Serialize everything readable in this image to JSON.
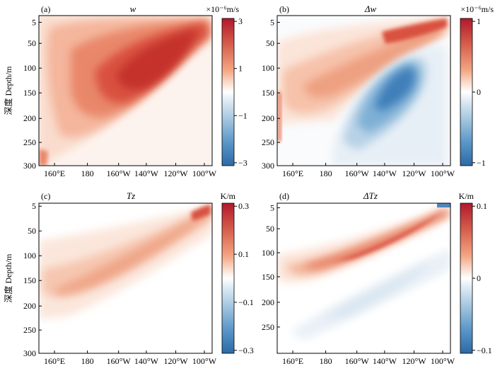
{
  "y_axis_label": "深度 Depth/m",
  "x_ticks": [
    "160°E",
    "180",
    "160°W",
    "140°W",
    "120°W",
    "100°W"
  ],
  "panels": [
    {
      "id": "a",
      "label": "(a)",
      "title": "w",
      "unit": "×10⁻⁶m/s",
      "y_ticks": [
        "5",
        "50",
        "100",
        "150",
        "200",
        "250",
        "300"
      ],
      "cbar_ticks": [
        "3",
        "1",
        "−1",
        "−3"
      ],
      "colormap": "diverging red-white-blue"
    },
    {
      "id": "b",
      "label": "(b)",
      "title": "Δw",
      "unit": "×10⁻⁶m/s",
      "y_ticks": [
        "5",
        "50",
        "100",
        "150",
        "200",
        "250",
        "300"
      ],
      "cbar_ticks": [
        "1",
        "0",
        "−1"
      ],
      "colormap": "diverging red-white-blue"
    },
    {
      "id": "c",
      "label": "(c)",
      "title": "Tz",
      "unit": "K/m",
      "y_ticks": [
        "5",
        "50",
        "100",
        "150",
        "200",
        "250",
        "300"
      ],
      "cbar_ticks": [
        "0.3",
        "0.1",
        "−0.1",
        "−0.3"
      ],
      "colormap": "diverging red-white-blue"
    },
    {
      "id": "d",
      "label": "(d)",
      "title": "ΔTz",
      "unit": "K/m",
      "y_ticks": [
        "5",
        "50",
        "100",
        "150",
        "200",
        "250"
      ],
      "cbar_ticks": [
        "0.1",
        "0",
        "−0.1"
      ],
      "colormap": "diverging red-white-blue"
    }
  ],
  "colors": {
    "red_strong": "#c8382f",
    "red_light": "#f7d7c9",
    "blue_strong": "#2f6fae",
    "blue_light": "#dce9f3"
  }
}
